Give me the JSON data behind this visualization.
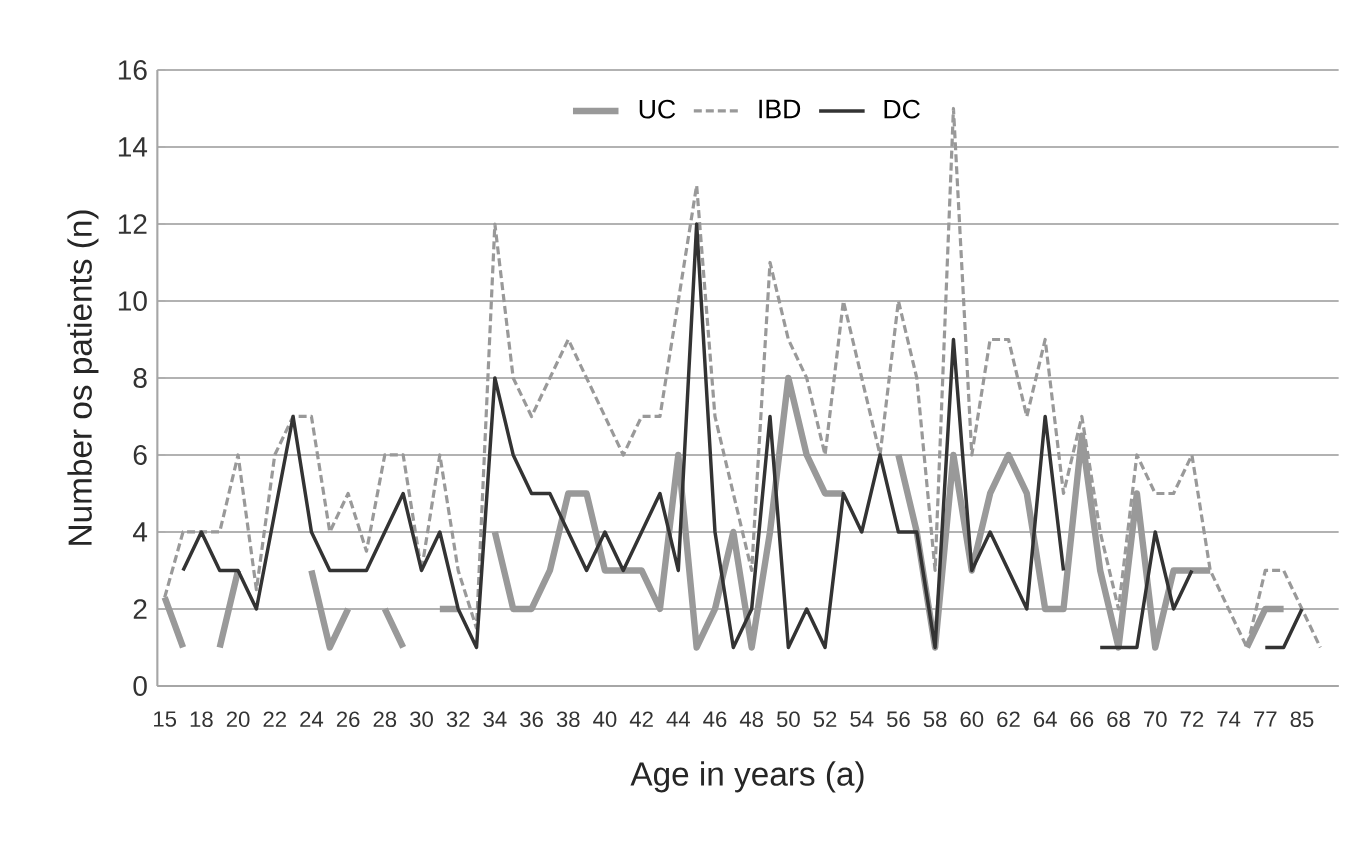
{
  "chart_data": {
    "type": "line",
    "xlabel": "Age in years (a)",
    "ylabel": "Number os patients (n)",
    "categories": [
      "15",
      null,
      "18",
      null,
      "20",
      null,
      "22",
      null,
      "24",
      null,
      "26",
      null,
      "28",
      null,
      "30",
      null,
      "32",
      null,
      "34",
      null,
      "36",
      null,
      "38",
      null,
      "40",
      null,
      "42",
      null,
      "44",
      null,
      "46",
      null,
      "48",
      null,
      "50",
      null,
      "52",
      null,
      "54",
      null,
      "56",
      null,
      "58",
      null,
      "60",
      null,
      "62",
      null,
      "64",
      null,
      "66",
      null,
      "68",
      null,
      "70",
      null,
      "72",
      null,
      "74",
      null,
      "77",
      null,
      "85",
      null
    ],
    "series": [
      {
        "name": "UC",
        "color": "#999999",
        "line_style": "solid",
        "values": [
          2.3,
          1,
          null,
          1,
          3,
          null,
          null,
          null,
          3,
          1,
          2,
          null,
          2,
          1,
          null,
          2,
          2,
          null,
          4,
          2,
          2,
          3,
          5,
          5,
          3,
          3,
          3,
          2,
          6,
          1,
          2,
          4,
          1,
          4,
          8,
          6,
          5,
          5,
          null,
          null,
          6,
          4,
          1,
          6,
          3,
          5,
          6,
          5,
          2,
          2,
          6.5,
          3,
          1,
          5,
          1,
          3,
          3,
          3,
          null,
          1,
          2,
          2,
          null,
          null
        ]
      },
      {
        "name": "IBD",
        "color": "#999999",
        "line_style": "dashed",
        "values": [
          2.3,
          4,
          4,
          4,
          6,
          2.5,
          6,
          7,
          7,
          4,
          5,
          3.5,
          6,
          6,
          3,
          6,
          3,
          1.5,
          12,
          8,
          7,
          8,
          9,
          8,
          7,
          6,
          7,
          7,
          10,
          13,
          7,
          5,
          3,
          11,
          9,
          8,
          6,
          10,
          8,
          6,
          10,
          8,
          3,
          15,
          6,
          9,
          9,
          7,
          9,
          5,
          7,
          4,
          2,
          6,
          5,
          5,
          6,
          3,
          2,
          1,
          3,
          3,
          2,
          1
        ]
      },
      {
        "name": "DC",
        "color": "#333333",
        "line_style": "solid",
        "values": [
          null,
          3,
          4,
          3,
          3,
          2,
          4.5,
          7,
          4,
          3,
          3,
          3,
          4,
          5,
          3,
          4,
          2,
          1,
          8,
          6,
          5,
          5,
          4,
          3,
          4,
          3,
          4,
          5,
          3,
          12,
          4,
          1,
          2,
          7,
          1,
          2,
          1,
          5,
          4,
          6,
          4,
          4,
          1,
          9,
          3,
          4,
          3,
          2,
          7,
          3,
          null,
          1,
          1,
          1,
          4,
          2,
          3,
          null,
          null,
          null,
          1,
          1,
          2,
          null
        ]
      }
    ],
    "ylim": [
      0,
      16
    ],
    "yticks": [
      0,
      2,
      4,
      6,
      8,
      10,
      12,
      14,
      16
    ],
    "grid": "y",
    "legend": "top"
  }
}
